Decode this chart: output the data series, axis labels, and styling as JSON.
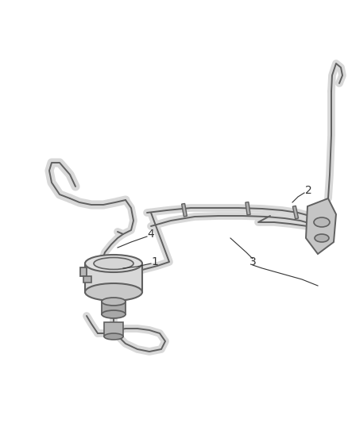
{
  "background_color": "#ffffff",
  "line_color": "#606060",
  "label_color": "#333333",
  "fig_width": 4.38,
  "fig_height": 5.33,
  "dpi": 100,
  "label_fontsize": 10,
  "tube_lw": 7,
  "tube_fill": "#d8d8d8",
  "tube_edge": "#606060",
  "tube_edge_lw": 1.5
}
